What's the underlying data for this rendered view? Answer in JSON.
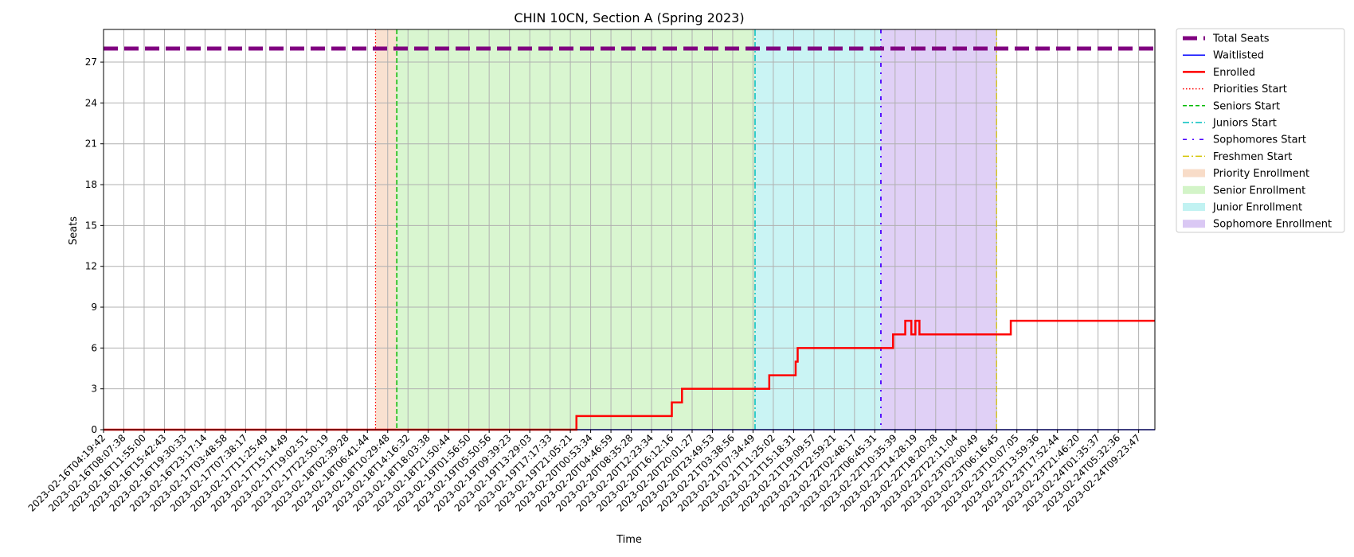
{
  "chart_data": {
    "type": "line",
    "title": "CHIN 10CN, Section A (Spring 2023)",
    "xlabel": "Time",
    "ylabel": "Seats",
    "ylim": [
      0,
      29.4
    ],
    "yticks": [
      0,
      3,
      6,
      9,
      12,
      15,
      18,
      21,
      24,
      27
    ],
    "grid": true,
    "legend_position": "outside-top-right",
    "x_tick_labels": [
      "2023-02-16T04:19:42",
      "2023-02-16T08:07:38",
      "2023-02-16T11:55:00",
      "2023-02-16T15:42:43",
      "2023-02-16T19:30:33",
      "2023-02-16T23:17:14",
      "2023-02-17T03:48:58",
      "2023-02-17T07:38:17",
      "2023-02-17T11:25:49",
      "2023-02-17T15:14:49",
      "2023-02-17T19:02:51",
      "2023-02-17T22:50:19",
      "2023-02-18T02:39:28",
      "2023-02-18T06:41:44",
      "2023-02-18T10:29:48",
      "2023-02-18T14:16:32",
      "2023-02-18T18:03:38",
      "2023-02-18T21:50:44",
      "2023-02-19T01:56:50",
      "2023-02-19T05:50:56",
      "2023-02-19T09:39:23",
      "2023-02-19T13:29:03",
      "2023-02-19T17:17:33",
      "2023-02-19T21:05:21",
      "2023-02-20T00:53:34",
      "2023-02-20T04:46:59",
      "2023-02-20T08:35:28",
      "2023-02-20T12:23:34",
      "2023-02-20T16:12:16",
      "2023-02-20T20:01:27",
      "2023-02-20T23:49:53",
      "2023-02-21T03:38:56",
      "2023-02-21T07:34:49",
      "2023-02-21T11:25:02",
      "2023-02-21T15:18:31",
      "2023-02-21T19:09:57",
      "2023-02-21T22:59:21",
      "2023-02-22T02:48:17",
      "2023-02-22T06:45:31",
      "2023-02-22T10:35:39",
      "2023-02-22T14:28:19",
      "2023-02-22T18:20:28",
      "2023-02-22T22:11:04",
      "2023-02-23T02:00:49",
      "2023-02-23T06:16:45",
      "2023-02-23T10:07:05",
      "2023-02-23T13:59:36",
      "2023-02-23T17:52:44",
      "2023-02-23T21:46:20",
      "2023-02-24T01:35:37",
      "2023-02-24T05:32:36",
      "2023-02-24T09:23:47"
    ],
    "x_range_index": [
      0,
      51.8
    ],
    "total_seats": 28,
    "enrolled": {
      "x_index": [
        0,
        23.3,
        23.3,
        28.0,
        28.0,
        28.5,
        28.5,
        32.8,
        32.8,
        34.1,
        34.1,
        34.2,
        34.2,
        38.9,
        38.9,
        39.5,
        39.5,
        39.8,
        39.8,
        40.0,
        40.0,
        40.2,
        40.2,
        44.7,
        44.7,
        51.8
      ],
      "y": [
        0,
        0,
        1,
        1,
        2,
        2,
        3,
        3,
        4,
        4,
        5,
        5,
        6,
        6,
        7,
        7,
        8,
        8,
        7,
        7,
        8,
        8,
        7,
        7,
        8,
        8
      ]
    },
    "waitlisted": {
      "x_index": [
        0,
        51.8
      ],
      "y": [
        0,
        0
      ]
    },
    "phase_starts_index": {
      "priorities": 13.4,
      "seniors": 14.45,
      "juniors": 32.1,
      "sophomores": 38.3,
      "freshmen": 44.0
    },
    "legend": [
      {
        "label": "Total Seats",
        "kind": "thickdash",
        "color": "#800080"
      },
      {
        "label": "Waitlisted",
        "kind": "line",
        "color": "#0000ff"
      },
      {
        "label": "Enrolled",
        "kind": "line",
        "color": "#ff0000"
      },
      {
        "label": "Priorities Start",
        "kind": "dotted",
        "color": "#ff0000"
      },
      {
        "label": "Seniors Start",
        "kind": "dashed",
        "color": "#00bb00"
      },
      {
        "label": "Juniors Start",
        "kind": "dashdot",
        "color": "#00bfbf"
      },
      {
        "label": "Sophomores Start",
        "kind": "loosedash",
        "color": "#4b00ff"
      },
      {
        "label": "Freshmen Start",
        "kind": "dashdot",
        "color": "#d4c400"
      },
      {
        "label": "Priority Enrollment",
        "kind": "patch",
        "color": "#f5cdb0"
      },
      {
        "label": "Senior Enrollment",
        "kind": "patch",
        "color": "#c0f0b0"
      },
      {
        "label": "Junior Enrollment",
        "kind": "patch",
        "color": "#a6ecec"
      },
      {
        "label": "Sophomore Enrollment",
        "kind": "patch",
        "color": "#cbb0f0"
      }
    ],
    "colors": {
      "total_seats": "#800080",
      "enrolled": "#ff0000",
      "waitlisted": "#0000ff",
      "priority_fill": "#f5cdb0",
      "senior_fill": "#c0f0b0",
      "junior_fill": "#a6ecec",
      "sophomore_fill": "#cbb0f0",
      "priorities_line": "#ff0000",
      "seniors_line": "#00bb00",
      "juniors_line": "#00bfbf",
      "sophomores_line": "#4b00ff",
      "freshmen_line": "#d4c400"
    }
  }
}
